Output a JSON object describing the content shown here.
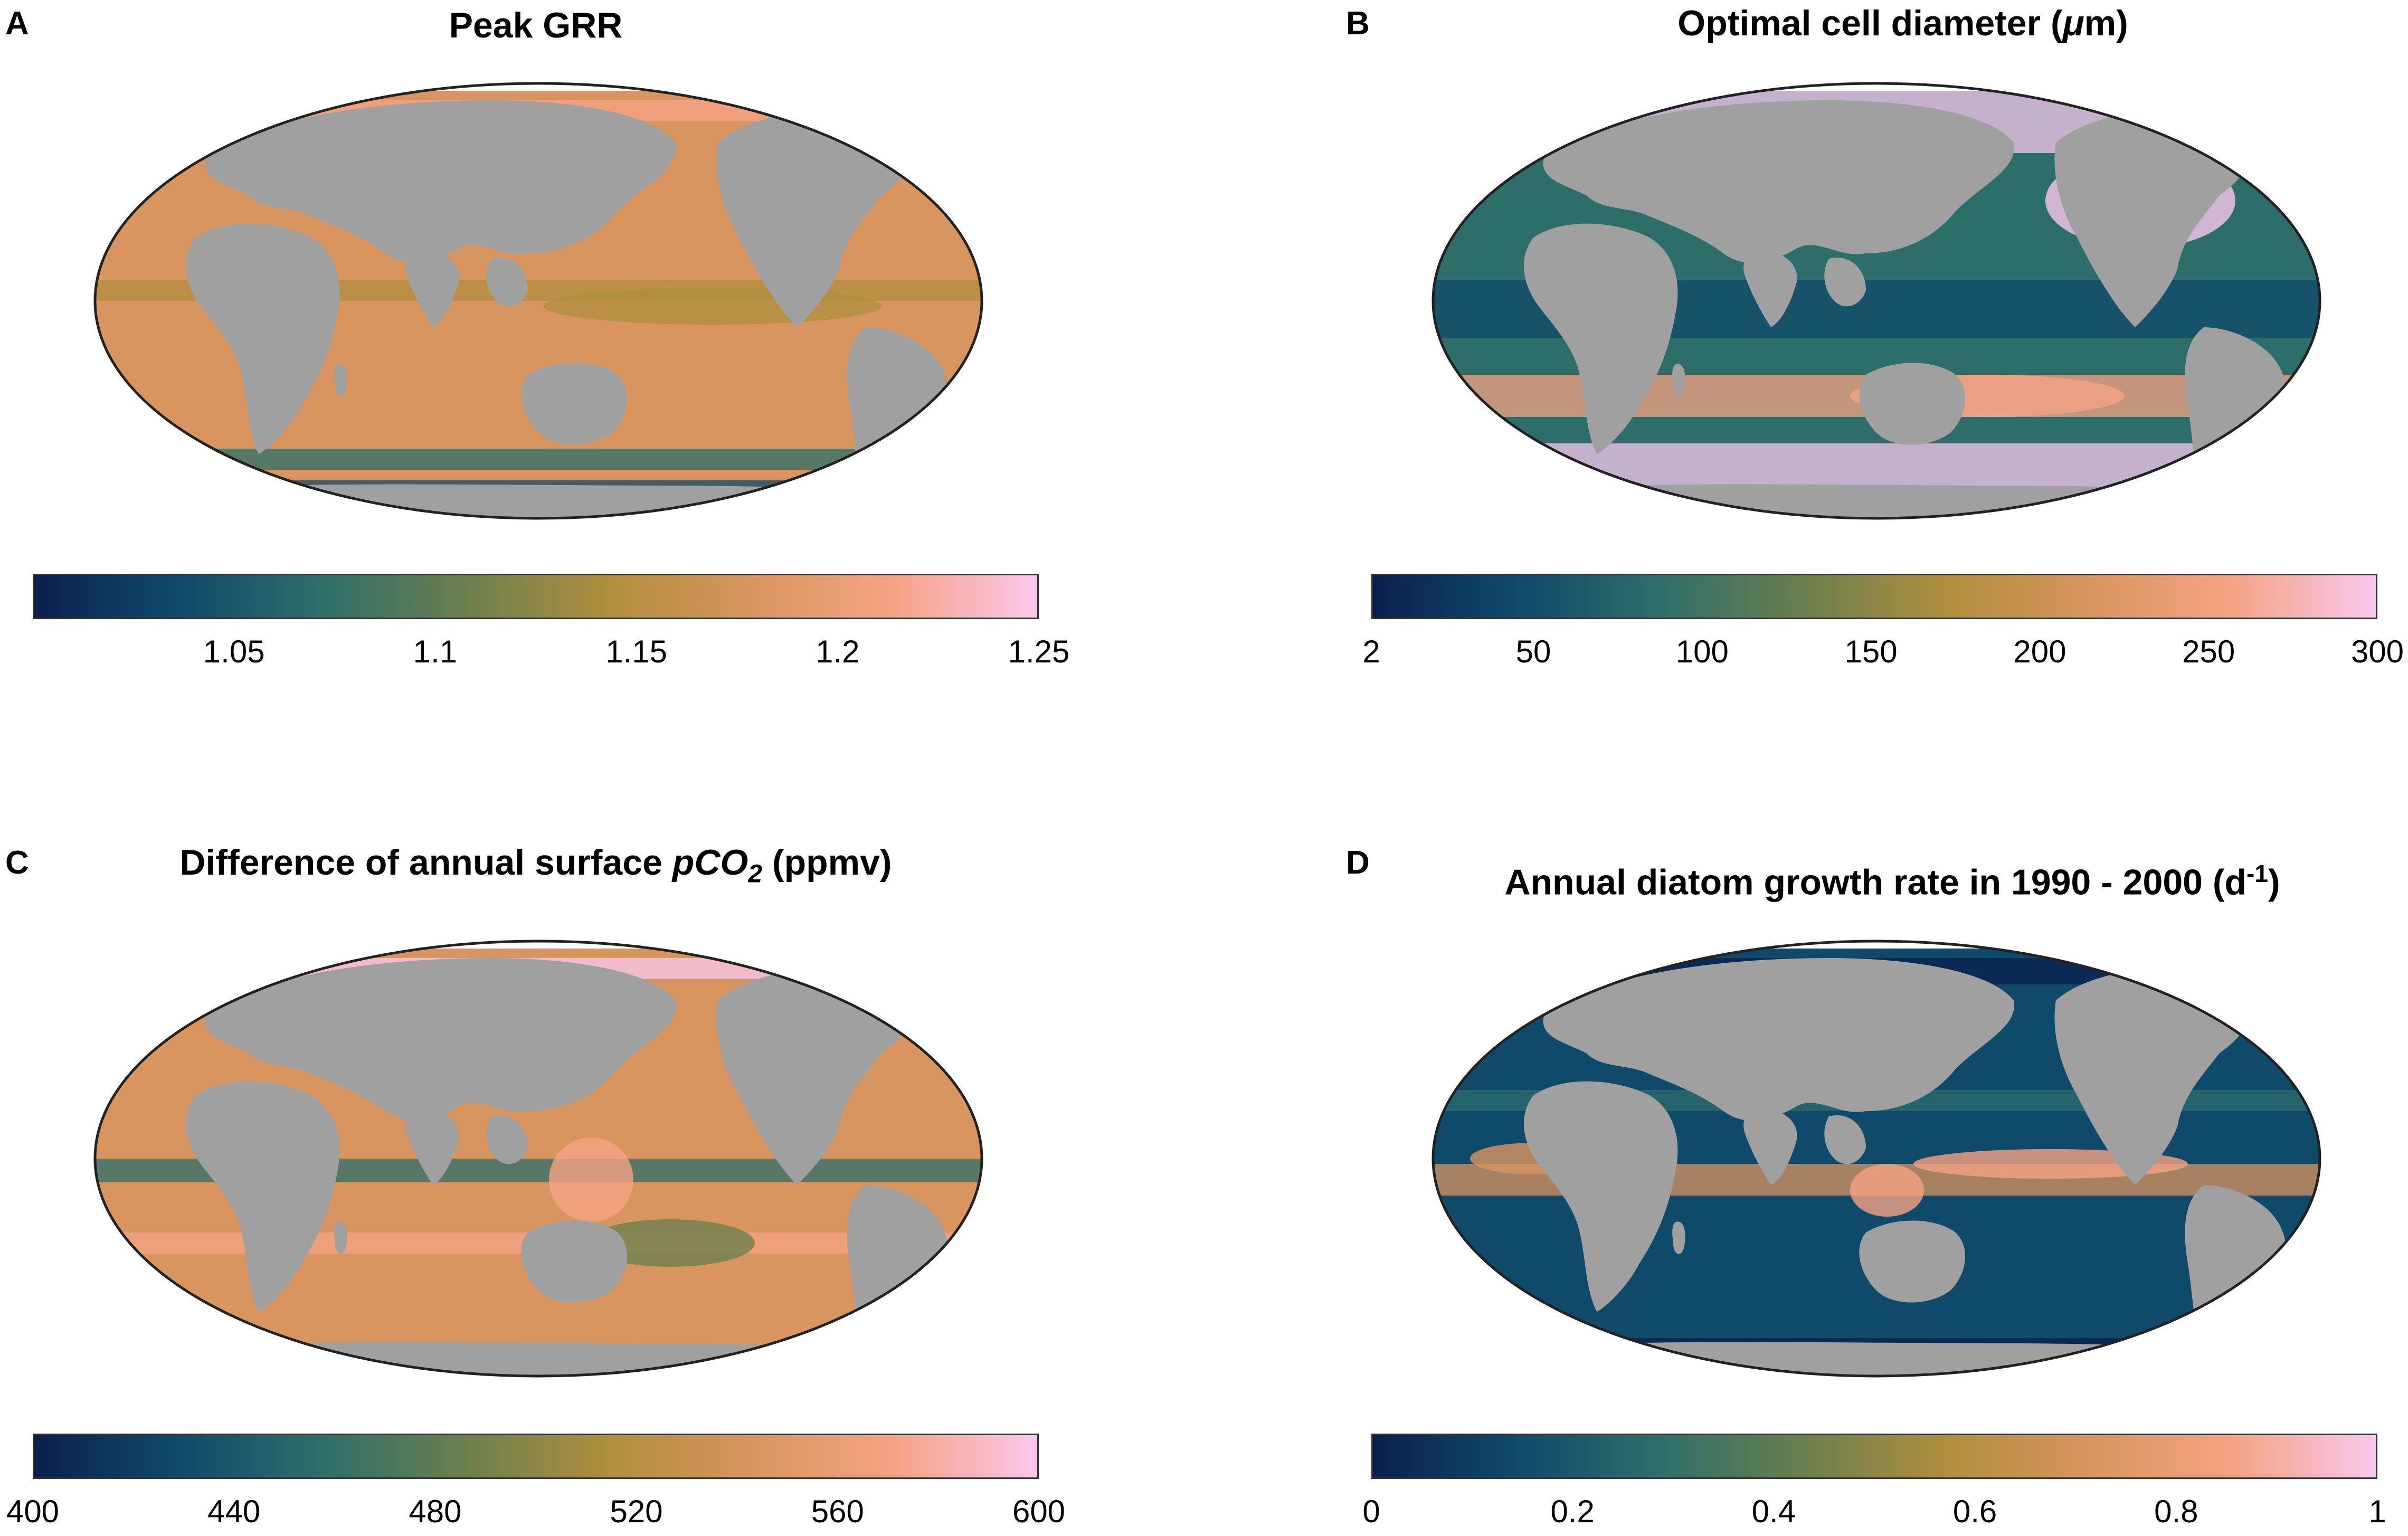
{
  "figure": {
    "ocean_colormap": [
      "#0b1f4e",
      "#0f4a6b",
      "#2e6e6a",
      "#6b7f4e",
      "#b08e3e",
      "#d9955f",
      "#f5a384",
      "#fac8ee"
    ],
    "land_color": "#a0a0a0",
    "ice_color": "#ffffff",
    "outline_color": "#222222"
  },
  "panels": [
    {
      "letter": "A",
      "title_main": "Peak GRR",
      "title_italic": "",
      "title_sub": "",
      "title_end": "",
      "colorbar": {
        "min": 1.0,
        "max": 1.25,
        "ticks": [
          "1.05",
          "1.1",
          "1.15",
          "1.2",
          "1.25"
        ],
        "tick_values": [
          1.05,
          1.1,
          1.15,
          1.2,
          1.25
        ]
      },
      "map_style": "orange"
    },
    {
      "letter": "B",
      "title_main": "Optimal cell diameter (",
      "title_italic": "μ",
      "title_sub": "",
      "title_end": "m)",
      "colorbar": {
        "min": 2,
        "max": 300,
        "ticks": [
          "2",
          "50",
          "100",
          "150",
          "200",
          "250",
          "300"
        ],
        "tick_values": [
          2,
          50,
          100,
          150,
          200,
          250,
          300
        ]
      },
      "map_style": "teal-pink"
    },
    {
      "letter": "C",
      "title_main": "Difference of annual surface ",
      "title_italic": "pCO",
      "title_sub": "2",
      "title_end": " (ppmv)",
      "colorbar": {
        "min": 400,
        "max": 600,
        "ticks": [
          "400",
          "440",
          "480",
          "520",
          "560",
          "600"
        ],
        "tick_values": [
          400,
          440,
          480,
          520,
          560,
          600
        ]
      },
      "map_style": "orange-pink"
    },
    {
      "letter": "D",
      "title_main": "Annual diatom growth rate in 1990 - 2000 (d",
      "title_italic": "",
      "title_sup": "-1",
      "title_end": ")",
      "colorbar": {
        "min": 0,
        "max": 1,
        "ticks": [
          "0",
          "0.2",
          "0.4",
          "0.6",
          "0.8",
          "1"
        ],
        "tick_values": [
          0,
          0.2,
          0.4,
          0.6,
          0.8,
          1
        ]
      },
      "map_style": "teal"
    }
  ]
}
